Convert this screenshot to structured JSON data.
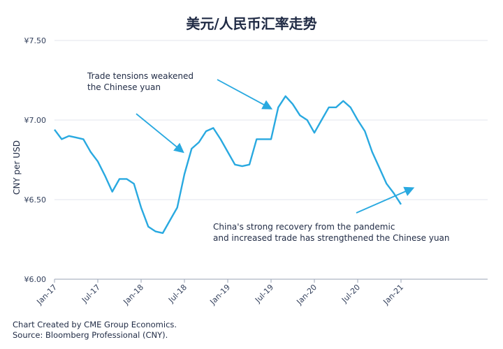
{
  "chart_data": {
    "type": "line",
    "title": "美元/人民币汇率走势",
    "ylabel": "CNY per USD",
    "xlabel": "",
    "ylim": [
      6.0,
      7.5
    ],
    "y_ticks": [
      "¥7.50",
      "¥7.00",
      "¥6.50",
      "¥6.00"
    ],
    "y_tick_values": [
      7.5,
      7.0,
      6.5,
      6.0
    ],
    "x_ticks": [
      "Jan-17",
      "Jul-17",
      "Jan-18",
      "Jul-18",
      "Jan-19",
      "Jul-19",
      "Jan-20",
      "Jul-20",
      "Jan-21"
    ],
    "x_tick_dates": [
      "2017-01",
      "2017-07",
      "2018-01",
      "2018-07",
      "2019-01",
      "2019-07",
      "2020-01",
      "2020-07",
      "2021-01"
    ],
    "xlim": [
      "2017-01",
      "2022-01"
    ],
    "grid": true,
    "line_color": "#29a9e0",
    "series": [
      {
        "x": [
          "2017-01",
          "2017-02",
          "2017-03",
          "2017-04",
          "2017-05",
          "2017-06",
          "2017-07",
          "2017-08",
          "2017-09",
          "2017-10",
          "2017-11",
          "2017-12",
          "2018-01",
          "2018-02",
          "2018-03",
          "2018-04",
          "2018-05",
          "2018-06",
          "2018-07",
          "2018-08",
          "2018-09",
          "2018-10",
          "2018-11",
          "2018-12",
          "2019-01",
          "2019-02",
          "2019-03",
          "2019-04",
          "2019-05",
          "2019-06",
          "2019-07",
          "2019-08",
          "2019-09",
          "2019-10",
          "2019-11",
          "2019-12",
          "2020-01",
          "2020-02",
          "2020-03",
          "2020-04",
          "2020-05",
          "2020-06",
          "2020-07",
          "2020-08",
          "2020-09",
          "2020-10",
          "2020-11",
          "2020-12",
          "2021-01"
        ],
        "values": [
          6.94,
          6.88,
          6.9,
          6.89,
          6.88,
          6.8,
          6.74,
          6.65,
          6.55,
          6.63,
          6.63,
          6.6,
          6.45,
          6.33,
          6.3,
          6.29,
          6.37,
          6.45,
          6.66,
          6.82,
          6.86,
          6.93,
          6.95,
          6.88,
          6.8,
          6.72,
          6.71,
          6.72,
          6.88,
          6.88,
          6.88,
          7.08,
          7.15,
          7.1,
          7.03,
          7.0,
          6.92,
          7.0,
          7.08,
          7.08,
          7.12,
          7.08,
          7.0,
          6.93,
          6.8,
          6.7,
          6.6,
          6.54,
          6.47
        ]
      }
    ]
  },
  "annotations": {
    "trade_line1": "Trade tensions weakened",
    "trade_line2": "the Chinese yuan",
    "recovery_line1": "China's strong recovery from the pandemic",
    "recovery_line2": "and increased trade has strengthened the Chinese yuan"
  },
  "footer": {
    "line1": "Chart Created by CME Group Economics.",
    "line2": "Source: Bloomberg Professional (CNY)."
  }
}
